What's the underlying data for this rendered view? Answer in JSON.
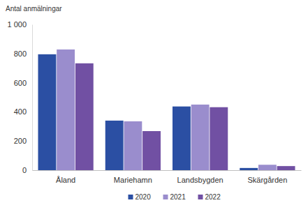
{
  "chart_data": {
    "type": "bar",
    "y_label": "Antal anmälningar",
    "categories": [
      "Åland",
      "Mariehamn",
      "Landsbygden",
      "Skärgården"
    ],
    "series": [
      {
        "name": "2020",
        "color": "#2b4fa3",
        "values": [
          795,
          340,
          437,
          15
        ]
      },
      {
        "name": "2021",
        "color": "#9a8dcd",
        "values": [
          828,
          335,
          450,
          37
        ]
      },
      {
        "name": "2022",
        "color": "#7150a3",
        "values": [
          733,
          268,
          432,
          28
        ]
      }
    ],
    "ylim": [
      0,
      1000
    ],
    "yticks": [
      0,
      200,
      400,
      600,
      800,
      {
        "value": 1000,
        "label": "1 000"
      }
    ],
    "grid": false,
    "legend": "bottom"
  }
}
